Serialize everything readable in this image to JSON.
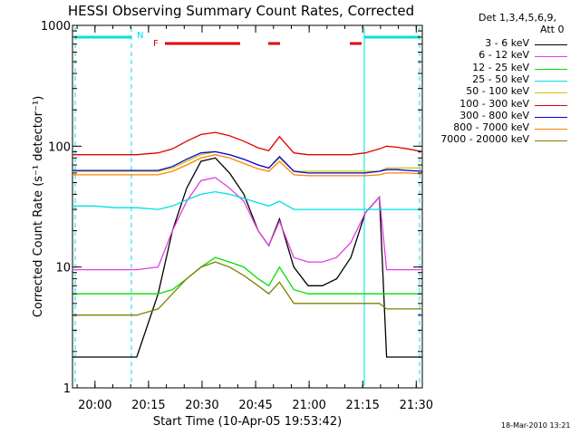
{
  "chart_data": {
    "type": "line",
    "title": "HESSI Observing Summary Count Rates, Corrected",
    "xlabel": "Start Time (10-Apr-05 19:53:42)",
    "ylabel": "Corrected Count Rate (s⁻¹ detector⁻¹)",
    "yscale": "log",
    "ylim": [
      1,
      1000
    ],
    "xlim_minutes": [
      0,
      98
    ],
    "x_ticks": [
      "20:00",
      "20:15",
      "20:30",
      "20:45",
      "21:00",
      "21:15",
      "21:30"
    ],
    "y_ticks": [
      "1",
      "10",
      "100",
      "1000"
    ],
    "legend_header": [
      "Det 1,3,4,5,6,9,",
      "Att 0"
    ],
    "timestamp": "18-Mar-2010 13:21",
    "flag_labels": [
      "N",
      "F"
    ],
    "x_minutes": [
      0,
      6,
      12,
      18,
      24,
      28,
      32,
      36,
      40,
      44,
      48,
      52,
      55,
      58,
      62,
      66,
      70,
      74,
      78,
      82,
      86,
      88,
      91,
      94,
      98
    ],
    "series": [
      {
        "name": "3 - 6 keV",
        "color": "#000000",
        "values": [
          1.8,
          1.8,
          1.8,
          1.8,
          6,
          20,
          45,
          75,
          80,
          60,
          40,
          20,
          15,
          25,
          10,
          7,
          7,
          8,
          12,
          28,
          38,
          1.8,
          1.8,
          1.8,
          1.8
        ]
      },
      {
        "name": "6 - 12 keV",
        "color": "#e040e0",
        "values": [
          9.5,
          9.5,
          9.5,
          9.5,
          10,
          20,
          35,
          52,
          55,
          45,
          35,
          20,
          15,
          24,
          12,
          11,
          11,
          12,
          16,
          28,
          38,
          9.5,
          9.5,
          9.5,
          9.5
        ]
      },
      {
        "name": "12 - 25 keV",
        "color": "#00e000",
        "values": [
          6,
          6,
          6,
          6,
          6,
          6.5,
          8,
          10,
          12,
          11,
          10,
          8,
          7,
          10,
          6.5,
          6,
          6,
          6,
          6,
          6,
          6,
          6,
          6,
          6,
          6
        ]
      },
      {
        "name": "25 - 50 keV",
        "color": "#00e0e0",
        "values": [
          32,
          32,
          31,
          31,
          30,
          32,
          36,
          40,
          42,
          40,
          37,
          34,
          32,
          35,
          30,
          30,
          30,
          30,
          30,
          30,
          30,
          30,
          30,
          30,
          30
        ]
      },
      {
        "name": "50 - 100 keV",
        "color": "#c8c800",
        "values": [
          62,
          62,
          62,
          62,
          62,
          66,
          75,
          85,
          90,
          85,
          78,
          70,
          66,
          80,
          62,
          62,
          62,
          62,
          62,
          62,
          62,
          66,
          66,
          66,
          66
        ]
      },
      {
        "name": "100 - 300 keV",
        "color": "#e00000",
        "values": [
          85,
          85,
          85,
          85,
          88,
          95,
          110,
          125,
          130,
          122,
          110,
          97,
          92,
          120,
          88,
          85,
          85,
          85,
          85,
          88,
          95,
          100,
          98,
          95,
          90
        ]
      },
      {
        "name": "300 - 800 keV",
        "color": "#0000e0",
        "values": [
          63,
          63,
          63,
          63,
          63,
          68,
          78,
          88,
          90,
          85,
          78,
          70,
          66,
          82,
          62,
          60,
          60,
          60,
          60,
          60,
          62,
          64,
          64,
          63,
          62
        ]
      },
      {
        "name": "800 - 7000 keV",
        "color": "#ff8000",
        "values": [
          58,
          58,
          58,
          58,
          58,
          62,
          70,
          80,
          85,
          80,
          72,
          65,
          62,
          75,
          58,
          57,
          57,
          57,
          57,
          57,
          58,
          60,
          60,
          60,
          59
        ]
      },
      {
        "name": "7000 - 20000 keV",
        "color": "#808000",
        "values": [
          4,
          4,
          4,
          4,
          4.5,
          6,
          8,
          10,
          11,
          10,
          8.5,
          7,
          6,
          7.5,
          5,
          5,
          5,
          5,
          5,
          5,
          5,
          4.5,
          4.5,
          4.5,
          4.5
        ]
      }
    ],
    "grid": false,
    "legend_position": "right"
  }
}
